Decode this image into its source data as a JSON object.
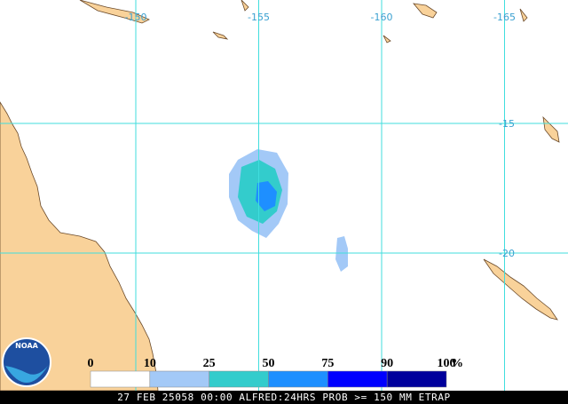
{
  "map": {
    "lon_labels": [
      -150,
      -155,
      -160,
      -165
    ],
    "lat_labels": [
      -15,
      -20
    ],
    "grid_color": "#40dede",
    "label_color": "#3aa0d0",
    "legend": {
      "ticks": [
        0,
        10,
        25,
        50,
        75,
        90,
        100
      ],
      "unit": "%",
      "colors": [
        "#ffffff",
        "#a3c9f7",
        "#33cccc",
        "#1e8fff",
        "#0000ff",
        "#00009c"
      ]
    },
    "logo": "NOAA",
    "footer": "27 FEB 25058 00:00 ALFRED:24HRS PROB >= 150 MM ETRAP"
  }
}
